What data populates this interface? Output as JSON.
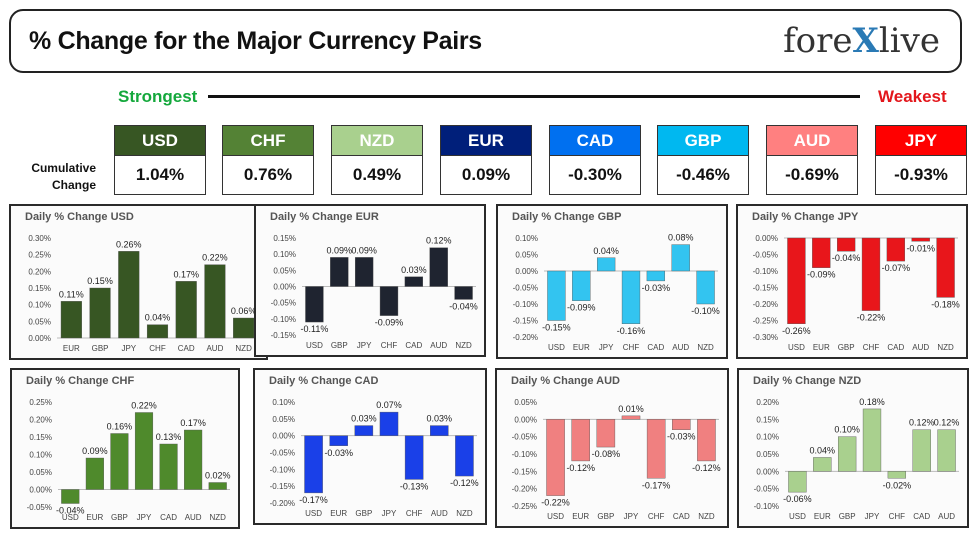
{
  "header": {
    "title": "% Change for the Major Currency Pairs",
    "logo_left": "fore",
    "logo_x": "X",
    "logo_right": "live"
  },
  "ranking": {
    "strongest_label": "Strongest",
    "weakest_label": "Weakest",
    "cumulative_label_line1": "Cumulative",
    "cumulative_label_line2": "Change",
    "currencies": [
      {
        "code": "USD",
        "value": "1.04%",
        "color": "#375623"
      },
      {
        "code": "CHF",
        "value": "0.76%",
        "color": "#548235"
      },
      {
        "code": "NZD",
        "value": "0.49%",
        "color": "#a9d08e"
      },
      {
        "code": "EUR",
        "value": "0.09%",
        "color": "#001f7a"
      },
      {
        "code": "CAD",
        "value": "-0.30%",
        "color": "#0070f0"
      },
      {
        "code": "GBP",
        "value": "-0.46%",
        "color": "#00b8f0"
      },
      {
        "code": "AUD",
        "value": "-0.69%",
        "color": "#ff8080"
      },
      {
        "code": "JPY",
        "value": "-0.93%",
        "color": "#ff0000"
      }
    ]
  },
  "chart_data": [
    {
      "type": "bar",
      "title": "Daily % Change USD",
      "categories": [
        "EUR",
        "GBP",
        "JPY",
        "CHF",
        "CAD",
        "AUD",
        "NZD"
      ],
      "values": [
        0.11,
        0.15,
        0.26,
        0.04,
        0.17,
        0.22,
        0.06
      ],
      "labels": [
        "0.11%",
        "0.15%",
        "0.26%",
        "0.04%",
        "0.17%",
        "0.22%",
        "0.06%"
      ],
      "ylim": [
        0,
        0.3
      ],
      "yticks": [
        "0.00%",
        "0.05%",
        "0.10%",
        "0.15%",
        "0.20%",
        "0.25%",
        "0.30%"
      ],
      "color": "#375623"
    },
    {
      "type": "bar",
      "title": "Daily % Change EUR",
      "categories": [
        "USD",
        "GBP",
        "JPY",
        "CHF",
        "CAD",
        "AUD",
        "NZD"
      ],
      "values": [
        -0.11,
        0.09,
        0.09,
        -0.09,
        0.03,
        0.12,
        -0.04
      ],
      "labels": [
        "-0.11%",
        "0.09%",
        "0.09%",
        "-0.09%",
        "0.03%",
        "0.12%",
        "-0.04%"
      ],
      "ylim": [
        -0.15,
        0.15
      ],
      "yticks": [
        "-0.15%",
        "-0.10%",
        "-0.05%",
        "0.00%",
        "0.05%",
        "0.10%",
        "0.15%"
      ],
      "color": "#1f2430"
    },
    {
      "type": "bar",
      "title": "Daily % Change GBP",
      "categories": [
        "USD",
        "EUR",
        "JPY",
        "CHF",
        "CAD",
        "AUD",
        "NZD"
      ],
      "values": [
        -0.15,
        -0.09,
        0.04,
        -0.16,
        -0.03,
        0.08,
        -0.1
      ],
      "labels": [
        "-0.15%",
        "-0.09%",
        "0.04%",
        "-0.16%",
        "-0.03%",
        "0.08%",
        "-0.10%"
      ],
      "ylim": [
        -0.2,
        0.1
      ],
      "yticks": [
        "-0.20%",
        "-0.15%",
        "-0.10%",
        "-0.05%",
        "0.00%",
        "0.05%",
        "0.10%"
      ],
      "color": "#33c4f0"
    },
    {
      "type": "bar",
      "title": "Daily % Change JPY",
      "categories": [
        "USD",
        "EUR",
        "GBP",
        "CHF",
        "CAD",
        "AUD",
        "NZD"
      ],
      "values": [
        -0.26,
        -0.09,
        -0.04,
        -0.22,
        -0.07,
        -0.01,
        -0.18
      ],
      "labels": [
        "-0.26%",
        "-0.09%",
        "-0.04%",
        "-0.22%",
        "-0.07%",
        "-0.01%",
        "-0.18%"
      ],
      "ylim": [
        -0.3,
        0.0
      ],
      "yticks": [
        "-0.30%",
        "-0.25%",
        "-0.20%",
        "-0.15%",
        "-0.10%",
        "-0.05%",
        "0.00%"
      ],
      "color": "#e8161b"
    },
    {
      "type": "bar",
      "title": "Daily % Change CHF",
      "categories": [
        "USD",
        "EUR",
        "GBP",
        "JPY",
        "CAD",
        "AUD",
        "NZD"
      ],
      "values": [
        -0.04,
        0.09,
        0.16,
        0.22,
        0.13,
        0.17,
        0.02
      ],
      "labels": [
        "-0.04%",
        "0.09%",
        "0.16%",
        "0.22%",
        "0.13%",
        "0.17%",
        "0.02%"
      ],
      "ylim": [
        -0.05,
        0.25
      ],
      "yticks": [
        "-0.05%",
        "0.00%",
        "0.05%",
        "0.10%",
        "0.15%",
        "0.20%",
        "0.25%"
      ],
      "color": "#4f8a2c"
    },
    {
      "type": "bar",
      "title": "Daily % Change CAD",
      "categories": [
        "USD",
        "EUR",
        "GBP",
        "JPY",
        "CHF",
        "AUD",
        "NZD"
      ],
      "values": [
        -0.17,
        -0.03,
        0.03,
        0.07,
        -0.13,
        0.03,
        -0.12
      ],
      "labels": [
        "-0.17%",
        "-0.03%",
        "0.03%",
        "0.07%",
        "-0.13%",
        "0.03%",
        "-0.12%"
      ],
      "ylim": [
        -0.2,
        0.1
      ],
      "yticks": [
        "-0.20%",
        "-0.15%",
        "-0.10%",
        "-0.05%",
        "0.00%",
        "0.05%",
        "0.10%"
      ],
      "color": "#1a40e8"
    },
    {
      "type": "bar",
      "title": "Daily % Change AUD",
      "categories": [
        "USD",
        "EUR",
        "GBP",
        "JPY",
        "CHF",
        "CAD",
        "NZD"
      ],
      "values": [
        -0.22,
        -0.12,
        -0.08,
        0.01,
        -0.17,
        -0.03,
        -0.12
      ],
      "labels": [
        "-0.22%",
        "-0.12%",
        "-0.08%",
        "0.01%",
        "-0.17%",
        "-0.03%",
        "-0.12%"
      ],
      "ylim": [
        -0.25,
        0.05
      ],
      "yticks": [
        "-0.25%",
        "-0.20%",
        "-0.15%",
        "-0.10%",
        "-0.05%",
        "0.00%",
        "0.05%"
      ],
      "color": "#f08080"
    },
    {
      "type": "bar",
      "title": "Daily % Change NZD",
      "categories": [
        "USD",
        "EUR",
        "GBP",
        "JPY",
        "CHF",
        "CAD",
        "AUD"
      ],
      "values": [
        -0.06,
        0.04,
        0.1,
        0.18,
        -0.02,
        0.12,
        0.12
      ],
      "labels": [
        "-0.06%",
        "0.04%",
        "0.10%",
        "0.18%",
        "-0.02%",
        "0.12%",
        "0.12%"
      ],
      "ylim": [
        -0.1,
        0.2
      ],
      "yticks": [
        "-0.10%",
        "-0.05%",
        "0.00%",
        "0.05%",
        "0.10%",
        "0.15%",
        "0.20%"
      ],
      "color": "#a9d08e"
    }
  ]
}
